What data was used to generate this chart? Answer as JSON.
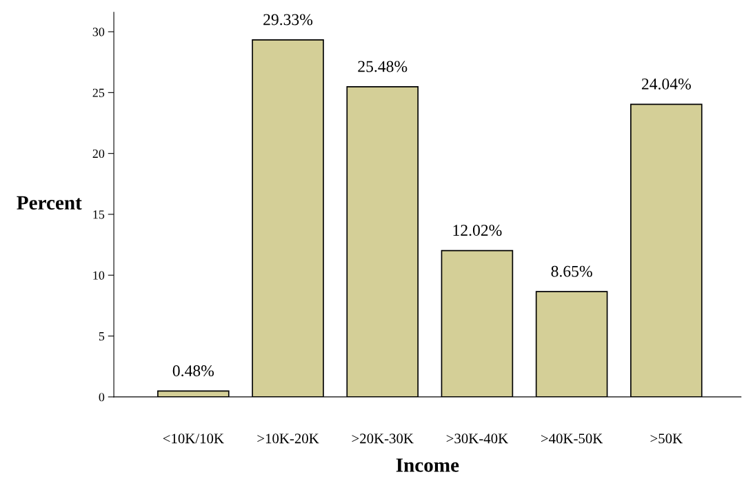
{
  "chart_data": {
    "type": "bar",
    "xlabel": "Income",
    "ylabel": "Percent",
    "categories": [
      "<10K/10K",
      ">10K-20K",
      ">20K-30K",
      ">30K-40K",
      ">40K-50K",
      ">50K"
    ],
    "values": [
      0.48,
      29.33,
      25.48,
      12.02,
      8.65,
      24.04
    ],
    "value_labels": [
      "0.48%",
      "29.33%",
      "25.48%",
      "12.02%",
      "8.65%",
      "24.04%"
    ],
    "color": "#d4cf97",
    "ylim": [
      0,
      31.6
    ],
    "yticks": [
      0,
      5,
      10,
      15,
      20,
      25,
      30
    ],
    "grid": false
  }
}
